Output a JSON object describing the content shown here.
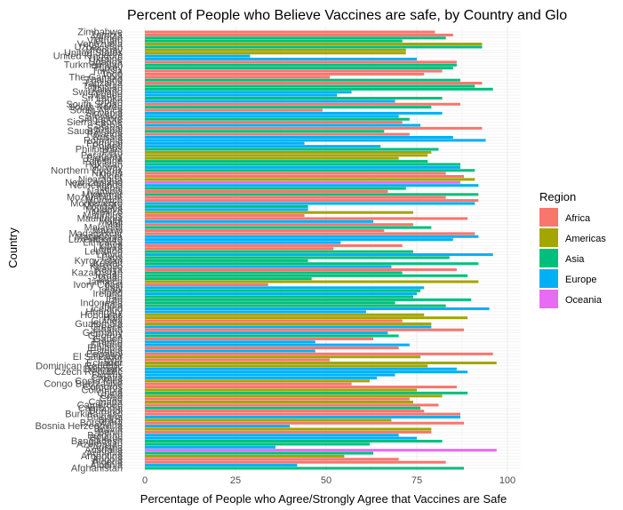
{
  "chart_data": {
    "type": "bar",
    "orientation": "horizontal",
    "title": "Percent of People who Believe Vaccines are safe, by Country and Glo",
    "xlabel": "Percentage of People who Agree/Strongly Agree that Vaccines are Safe",
    "ylabel": "Country",
    "xlim": [
      0,
      100
    ],
    "xticks": [
      0,
      25,
      50,
      75,
      100
    ],
    "grid": true,
    "legend": {
      "title": "Region",
      "position": "right",
      "items": [
        {
          "name": "Africa",
          "color": "#F8766D"
        },
        {
          "name": "Americas",
          "color": "#A3A500"
        },
        {
          "name": "Asia",
          "color": "#00BF7D"
        },
        {
          "name": "Europe",
          "color": "#00B0F6"
        },
        {
          "name": "Oceania",
          "color": "#E76BF3"
        }
      ]
    },
    "bars": [
      {
        "country": "Zimbabwe",
        "region": "Africa",
        "value": 80
      },
      {
        "country": "Zambia",
        "region": "Africa",
        "value": 85
      },
      {
        "country": "Yemen",
        "region": "Asia",
        "value": 83
      },
      {
        "country": "Vietnam",
        "region": "Asia",
        "value": 71
      },
      {
        "country": "Venezuela",
        "region": "Americas",
        "value": 93
      },
      {
        "country": "Uzbekistan",
        "region": "Asia",
        "value": 93
      },
      {
        "country": "Uruguay",
        "region": "Americas",
        "value": 72
      },
      {
        "country": "United States",
        "region": "Americas",
        "value": 72
      },
      {
        "country": "United Kingdom",
        "region": "Europe",
        "value": 29
      },
      {
        "country": "Ukraine",
        "region": "Europe",
        "value": 75
      },
      {
        "country": "Uganda",
        "region": "Africa",
        "value": 86
      },
      {
        "country": "Turkmenistan",
        "region": "Asia",
        "value": 86
      },
      {
        "country": "Turkey",
        "region": "Asia",
        "value": 85
      },
      {
        "country": "Tunisia",
        "region": "Africa",
        "value": 82
      },
      {
        "country": "Togo",
        "region": "Africa",
        "value": 77
      },
      {
        "country": "The Gambia",
        "region": "Africa",
        "value": 51
      },
      {
        "country": "Thailand",
        "region": "Asia",
        "value": 87
      },
      {
        "country": "Tanzania",
        "region": "Africa",
        "value": 93
      },
      {
        "country": "Tajikistan",
        "region": "Asia",
        "value": 91
      },
      {
        "country": "Taiwan",
        "region": "Asia",
        "value": 96
      },
      {
        "country": "Switzerland",
        "region": "Europe",
        "value": 57
      },
      {
        "country": "Sweden",
        "region": "Europe",
        "value": 53
      },
      {
        "country": "Sri Lanka",
        "region": "Asia",
        "value": 82
      },
      {
        "country": "Spain",
        "region": "Europe",
        "value": 69
      },
      {
        "country": "South Sudan",
        "region": "Africa",
        "value": 87
      },
      {
        "country": "South Korea",
        "region": "Asia",
        "value": 79
      },
      {
        "country": "South Africa",
        "region": "Africa",
        "value": 49
      },
      {
        "country": "Slovenia",
        "region": "Europe",
        "value": 82
      },
      {
        "country": "Slovakia",
        "region": "Europe",
        "value": 70
      },
      {
        "country": "Singapore",
        "region": "Asia",
        "value": 73
      },
      {
        "country": "Sierra Leone",
        "region": "Africa",
        "value": 71
      },
      {
        "country": "Serbia",
        "region": "Europe",
        "value": 76
      },
      {
        "country": "Senegal",
        "region": "Africa",
        "value": 93
      },
      {
        "country": "Saudi Arabia",
        "region": "Asia",
        "value": 66
      },
      {
        "country": "Rwanda",
        "region": "Africa",
        "value": 73
      },
      {
        "country": "Russia",
        "region": "Europe",
        "value": 85
      },
      {
        "country": "Romania",
        "region": "Europe",
        "value": 94
      },
      {
        "country": "Portugal",
        "region": "Europe",
        "value": 44
      },
      {
        "country": "Poland",
        "region": "Europe",
        "value": 65
      },
      {
        "country": "Philippines",
        "region": "Asia",
        "value": 81
      },
      {
        "country": "Peru",
        "region": "Americas",
        "value": 79
      },
      {
        "country": "Paraguay",
        "region": "Americas",
        "value": 78
      },
      {
        "country": "Panama",
        "region": "Americas",
        "value": 70
      },
      {
        "country": "Palestine",
        "region": "Asia",
        "value": 78
      },
      {
        "country": "Pakistan",
        "region": "Asia",
        "value": 87
      },
      {
        "country": "Norway",
        "region": "Europe",
        "value": 87
      },
      {
        "country": "Northern Cyprus",
        "region": "Asia",
        "value": 91
      },
      {
        "country": "Nigeria",
        "region": "Africa",
        "value": 83
      },
      {
        "country": "Niger",
        "region": "Africa",
        "value": 88
      },
      {
        "country": "Nicaragua",
        "region": "Americas",
        "value": 91
      },
      {
        "country": "New Zealand",
        "region": "Oceania",
        "value": 87
      },
      {
        "country": "Netherlands",
        "region": "Europe",
        "value": 92
      },
      {
        "country": "Nepal",
        "region": "Asia",
        "value": 72
      },
      {
        "country": "Namibia",
        "region": "Africa",
        "value": 67
      },
      {
        "country": "Myanmar",
        "region": "Asia",
        "value": 92
      },
      {
        "country": "Mozambique",
        "region": "Africa",
        "value": 83
      },
      {
        "country": "Morocco",
        "region": "Africa",
        "value": 92
      },
      {
        "country": "Montenegro",
        "region": "Europe",
        "value": 91
      },
      {
        "country": "Mongolia",
        "region": "Asia",
        "value": 45
      },
      {
        "country": "Moldova",
        "region": "Europe",
        "value": 45
      },
      {
        "country": "Mexico",
        "region": "Americas",
        "value": 74
      },
      {
        "country": "Mauritius",
        "region": "Africa",
        "value": 44
      },
      {
        "country": "Mauritania",
        "region": "Africa",
        "value": 89
      },
      {
        "country": "Malta",
        "region": "Europe",
        "value": 63
      },
      {
        "country": "Mali",
        "region": "Africa",
        "value": 74
      },
      {
        "country": "Malaysia",
        "region": "Asia",
        "value": 79
      },
      {
        "country": "Malawi",
        "region": "Africa",
        "value": 66
      },
      {
        "country": "Madagascar",
        "region": "Africa",
        "value": 91
      },
      {
        "country": "Macedonia",
        "region": "Europe",
        "value": 92
      },
      {
        "country": "Luxembourg",
        "region": "Europe",
        "value": 85
      },
      {
        "country": "Lithuania",
        "region": "Europe",
        "value": 54
      },
      {
        "country": "Libya",
        "region": "Africa",
        "value": 71
      },
      {
        "country": "Liberia",
        "region": "Africa",
        "value": 52
      },
      {
        "country": "Lebanon",
        "region": "Asia",
        "value": 74
      },
      {
        "country": "Latvia",
        "region": "Europe",
        "value": 96
      },
      {
        "country": "Laos",
        "region": "Asia",
        "value": 84
      },
      {
        "country": "Kyrgyzstan",
        "region": "Asia",
        "value": 45
      },
      {
        "country": "Kuwait",
        "region": "Asia",
        "value": 92
      },
      {
        "country": "Kosovo",
        "region": "Europe",
        "value": 68
      },
      {
        "country": "Kenya",
        "region": "Africa",
        "value": 86
      },
      {
        "country": "Kazakhstan",
        "region": "Asia",
        "value": 71
      },
      {
        "country": "Jordan",
        "region": "Asia",
        "value": 89
      },
      {
        "country": "Japan",
        "region": "Asia",
        "value": 46
      },
      {
        "country": "Jamaica",
        "region": "Americas",
        "value": 92
      },
      {
        "country": "Ivory Coast",
        "region": "Africa",
        "value": 34
      },
      {
        "country": "Italy",
        "region": "Europe",
        "value": 77
      },
      {
        "country": "Israel",
        "region": "Asia",
        "value": 76
      },
      {
        "country": "Ireland",
        "region": "Europe",
        "value": 75
      },
      {
        "country": "Iraq",
        "region": "Asia",
        "value": 74
      },
      {
        "country": "Iran",
        "region": "Asia",
        "value": 90
      },
      {
        "country": "Indonesia",
        "region": "Asia",
        "value": 69
      },
      {
        "country": "India",
        "region": "Asia",
        "value": 83
      },
      {
        "country": "Iceland",
        "region": "Europe",
        "value": 95
      },
      {
        "country": "Hungary",
        "region": "Europe",
        "value": 61
      },
      {
        "country": "Honduras",
        "region": "Americas",
        "value": 77
      },
      {
        "country": "Haiti",
        "region": "Americas",
        "value": 89
      },
      {
        "country": "Guinea",
        "region": "Africa",
        "value": 71
      },
      {
        "country": "Guatemala",
        "region": "Americas",
        "value": 79
      },
      {
        "country": "Greece",
        "region": "Europe",
        "value": 79
      },
      {
        "country": "Ghana",
        "region": "Africa",
        "value": 88
      },
      {
        "country": "Germany",
        "region": "Europe",
        "value": 67
      },
      {
        "country": "Georgia",
        "region": "Asia",
        "value": 70
      },
      {
        "country": "Gabon",
        "region": "Africa",
        "value": 63
      },
      {
        "country": "France",
        "region": "Europe",
        "value": 47
      },
      {
        "country": "Finland",
        "region": "Europe",
        "value": 73
      },
      {
        "country": "Ethiopia",
        "region": "Africa",
        "value": 70
      },
      {
        "country": "Estonia",
        "region": "Europe",
        "value": 47
      },
      {
        "country": "Eswatini",
        "region": "Africa",
        "value": 96
      },
      {
        "country": "El Salvador",
        "region": "Americas",
        "value": 76
      },
      {
        "country": "Egypt",
        "region": "Africa",
        "value": 51
      },
      {
        "country": "Ecuador",
        "region": "Americas",
        "value": 97
      },
      {
        "country": "Dominican Republic",
        "region": "Americas",
        "value": 78
      },
      {
        "country": "Denmark",
        "region": "Europe",
        "value": 86
      },
      {
        "country": "Czech Republic",
        "region": "Europe",
        "value": 89
      },
      {
        "country": "Cyprus",
        "region": "Europe",
        "value": 69
      },
      {
        "country": "Croatia",
        "region": "Europe",
        "value": 64
      },
      {
        "country": "Costa Rica",
        "region": "Americas",
        "value": 62
      },
      {
        "country": "Congo Brazzaville",
        "region": "Africa",
        "value": 57
      },
      {
        "country": "Comoros",
        "region": "Africa",
        "value": 86
      },
      {
        "country": "Colombia",
        "region": "Americas",
        "value": 75
      },
      {
        "country": "China",
        "region": "Asia",
        "value": 89
      },
      {
        "country": "Chile",
        "region": "Americas",
        "value": 82
      },
      {
        "country": "Chad",
        "region": "Africa",
        "value": 73
      },
      {
        "country": "Canada",
        "region": "Americas",
        "value": 74
      },
      {
        "country": "Cameroon",
        "region": "Africa",
        "value": 81
      },
      {
        "country": "Cambodia",
        "region": "Asia",
        "value": 76
      },
      {
        "country": "Burundi",
        "region": "Africa",
        "value": 77
      },
      {
        "country": "Burkina Faso",
        "region": "Africa",
        "value": 87
      },
      {
        "country": "Bulgaria",
        "region": "Europe",
        "value": 87
      },
      {
        "country": "Brazil",
        "region": "Americas",
        "value": 68
      },
      {
        "country": "Botswana",
        "region": "Africa",
        "value": 88
      },
      {
        "country": "Bosnia Herzegovina",
        "region": "Europe",
        "value": 40
      },
      {
        "country": "Bolivia",
        "region": "Americas",
        "value": 79
      },
      {
        "country": "Benin",
        "region": "Africa",
        "value": 79
      },
      {
        "country": "Belgium",
        "region": "Europe",
        "value": 70
      },
      {
        "country": "Belarus",
        "region": "Europe",
        "value": 75
      },
      {
        "country": "Bangladesh",
        "region": "Asia",
        "value": 82
      },
      {
        "country": "Azerbaijan",
        "region": "Asia",
        "value": 62
      },
      {
        "country": "Austria",
        "region": "Europe",
        "value": 36
      },
      {
        "country": "Australia",
        "region": "Oceania",
        "value": 97
      },
      {
        "country": "Armenia",
        "region": "Asia",
        "value": 63
      },
      {
        "country": "Argentina",
        "region": "Americas",
        "value": 55
      },
      {
        "country": "Angola",
        "region": "Africa",
        "value": 70
      },
      {
        "country": "Algeria",
        "region": "Africa",
        "value": 83
      },
      {
        "country": "Albania",
        "region": "Europe",
        "value": 42
      },
      {
        "country": "Afghanistan",
        "region": "Asia",
        "value": 88
      }
    ]
  }
}
